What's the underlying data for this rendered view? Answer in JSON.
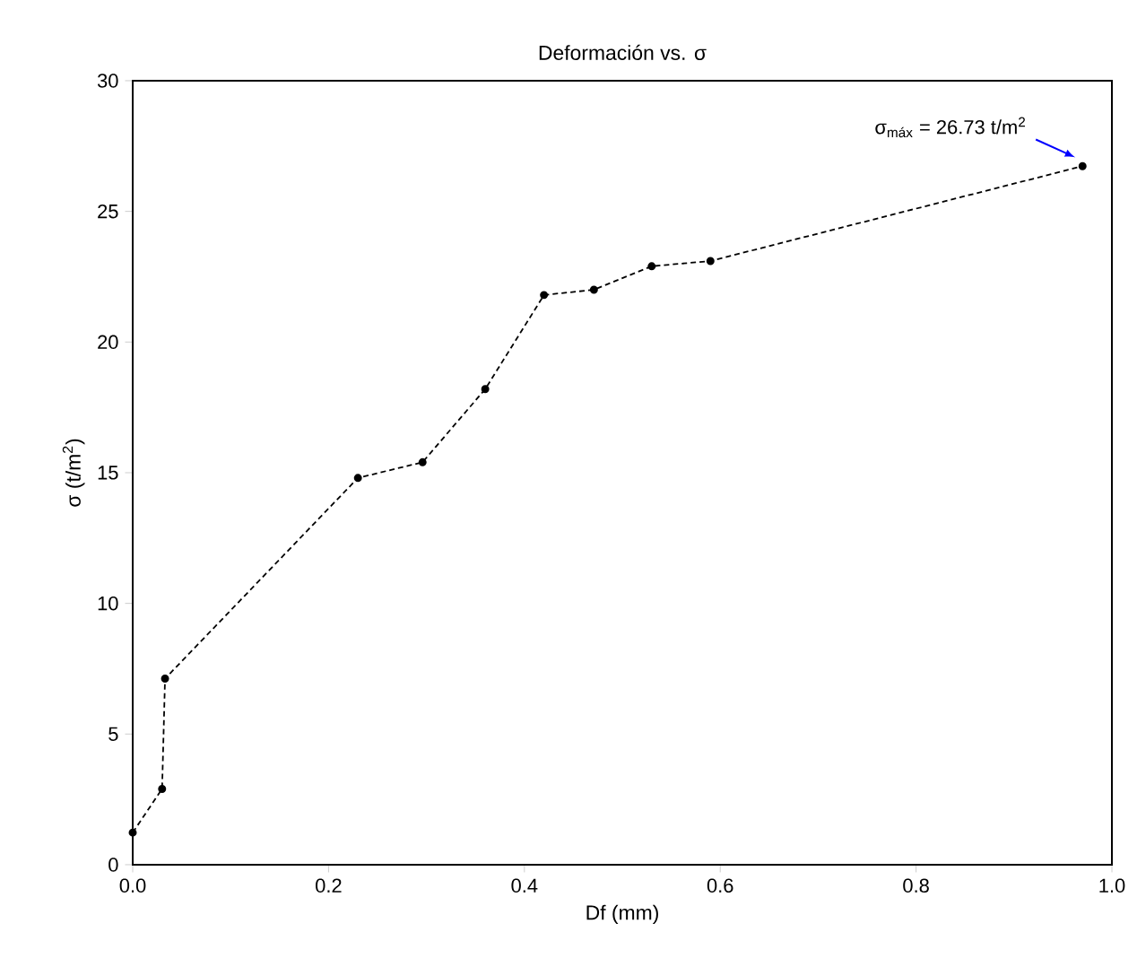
{
  "chart_data": {
    "type": "line",
    "title": "Deformación vs. σ",
    "xlabel": "Df (mm)",
    "ylabel": "σ (t/m$^{2}$)",
    "x": [
      0,
      0.03,
      0.033,
      0.23,
      0.296,
      0.36,
      0.42,
      0.471,
      0.53,
      0.59,
      0.97
    ],
    "series": [
      {
        "color": "#000000",
        "values": [
          1.23,
          2.9,
          7.12,
          14.8,
          15.4,
          18.2,
          21.8,
          22.0,
          22.9,
          23.1,
          26.73
        ]
      }
    ],
    "xlim": [
      0,
      1.0
    ],
    "ylim": [
      0,
      30
    ],
    "xticks": [
      {
        "value": 0,
        "label": "0.0"
      },
      0.2,
      0.4,
      0.6,
      0.8,
      {
        "value": 1.0,
        "label": "1.0"
      }
    ],
    "yticks": [
      0,
      5,
      10,
      15,
      20,
      25,
      30
    ],
    "annotations": [
      "σ$_{máx}$ = 26.73 t/m$^{2}$"
    ],
    "marker": "circle",
    "line_style": "dashed",
    "grid": false
  }
}
